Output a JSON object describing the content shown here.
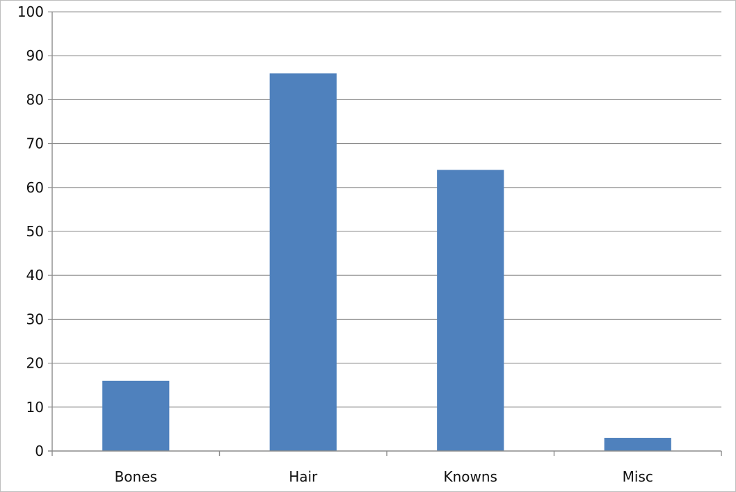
{
  "chart_data": {
    "type": "bar",
    "title": "",
    "xlabel": "",
    "ylabel": "",
    "categories": [
      "Bones",
      "Hair",
      "Knowns",
      "Misc"
    ],
    "values": [
      16,
      86,
      64,
      3
    ],
    "ylim": [
      0,
      100
    ],
    "yticks": [
      "0",
      "10",
      "20",
      "30",
      "40",
      "50",
      "60",
      "70",
      "80",
      "90",
      "100"
    ],
    "grid": true,
    "legend": "none",
    "bar_color": "#4f81bd"
  }
}
